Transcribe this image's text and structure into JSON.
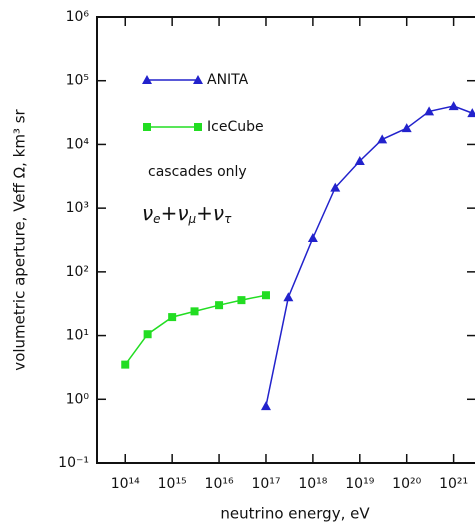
{
  "chart_data": {
    "type": "line",
    "x_label": "neutrino energy, eV",
    "y_label": "volumetric aperture, Veff Ω, km³ sr",
    "annotations": [
      "cascades only",
      [
        "ν",
        "e",
        "+ν",
        "μ",
        "+ν",
        "τ"
      ]
    ],
    "x_log": true,
    "y_log": true,
    "xlim": [
      25000000000000.0,
      3e+21
    ],
    "ylim": [
      0.1,
      1000000
    ],
    "xticks": [
      {
        "value": 100000000000000.0,
        "label": "10¹⁴"
      },
      {
        "value": 1000000000000000.0,
        "label": "10¹⁵"
      },
      {
        "value": 1e+16,
        "label": "10¹⁶"
      },
      {
        "value": 1e+17,
        "label": "10¹⁷"
      },
      {
        "value": 1e+18,
        "label": "10¹⁸"
      },
      {
        "value": 1e+19,
        "label": "10¹⁹"
      },
      {
        "value": 1e+20,
        "label": "10²⁰"
      },
      {
        "value": 1e+21,
        "label": "10²¹"
      }
    ],
    "yticks": [
      {
        "value": 0.1,
        "label": "10⁻¹"
      },
      {
        "value": 1,
        "label": "10⁰"
      },
      {
        "value": 10,
        "label": "10¹"
      },
      {
        "value": 100,
        "label": "10²"
      },
      {
        "value": 1000,
        "label": "10³"
      },
      {
        "value": 10000,
        "label": "10⁴"
      },
      {
        "value": 100000,
        "label": "10⁵"
      },
      {
        "value": 1000000,
        "label": "10⁶"
      }
    ],
    "series": [
      {
        "name": "ANITA",
        "color": "#2222cc",
        "marker": "triangle",
        "x": [
          1e+17,
          3e+17,
          1e+18,
          3e+18,
          1e+19,
          3e+19,
          1e+20,
          3e+20,
          1e+21,
          2.5e+21
        ],
        "values": [
          0.78,
          40,
          340,
          2100,
          5500,
          12000,
          18000,
          33000,
          40000,
          31000
        ]
      },
      {
        "name": "IceCube",
        "color": "#22dd22",
        "marker": "square",
        "x": [
          100000000000000.0,
          300000000000000.0,
          1000000000000000.0,
          3000000000000000.0,
          1e+16,
          3e+16,
          1e+17
        ],
        "values": [
          3.5,
          10.5,
          19.5,
          24,
          30,
          36,
          43
        ]
      }
    ]
  }
}
